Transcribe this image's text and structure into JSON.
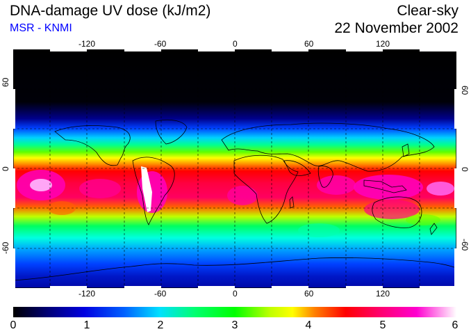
{
  "header": {
    "title": "DNA-damage UV dose (kJ/m2)",
    "credit": "MSR - KNMI",
    "credit_color": "#0000ff",
    "condition": "Clear-sky",
    "date": "22 November 2002"
  },
  "map": {
    "projection": "equirectangular",
    "lon_range": [
      -180,
      180
    ],
    "lat_range": [
      -90,
      90
    ],
    "graticule": "dashed",
    "lon_ticks": [
      -120,
      -60,
      0,
      60,
      120
    ],
    "lon_tick_labels": [
      "-120",
      "-60",
      "0",
      "60",
      "120"
    ],
    "lat_ticks": [
      60,
      0,
      -60
    ],
    "lat_tick_labels": [
      "60",
      "0",
      "-60"
    ],
    "coastline_color": "#000000",
    "field": "UV dose, high near the equator and southern tropics, near zero in the northern high latitudes (polar night)"
  },
  "colorbar": {
    "min": 0,
    "max": 6,
    "tick_labels": [
      "0",
      "1",
      "2",
      "3",
      "4",
      "5",
      "6"
    ],
    "colormap": [
      "#000000",
      "#0000c8",
      "#0050ff",
      "#00d8ff",
      "#00ff80",
      "#00ff00",
      "#80ff00",
      "#ffff00",
      "#ff8000",
      "#ff0000",
      "#ff0080",
      "#ff00c8",
      "#ffffff"
    ]
  }
}
